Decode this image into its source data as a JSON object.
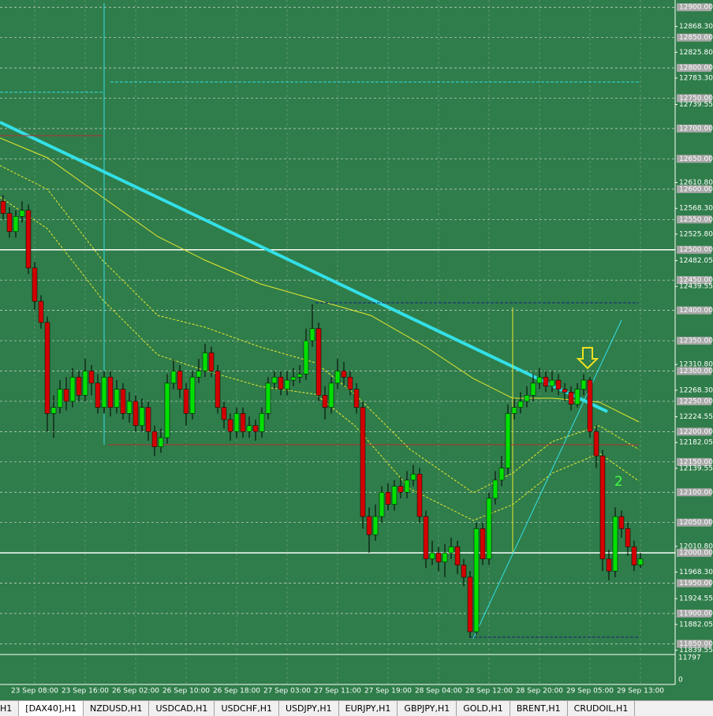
{
  "chart_data": {
    "type": "candlestick",
    "categories": [
      null,
      null,
      null,
      null,
      null,
      "23 Sep 08:00",
      null,
      null,
      null,
      null,
      null,
      null,
      null,
      "23 Sep 16:00",
      null,
      null,
      null,
      null,
      null,
      null,
      null,
      "26 Sep 02:00",
      null,
      null,
      null,
      null,
      null,
      null,
      null,
      "26 Sep 10:00",
      null,
      null,
      null,
      null,
      null,
      null,
      null,
      "26 Sep 18:00",
      null,
      null,
      null,
      null,
      null,
      null,
      null,
      "27 Sep 03:00",
      null,
      null,
      null,
      null,
      null,
      null,
      null,
      "27 Sep 11:00",
      null,
      null,
      null,
      null,
      null,
      null,
      null,
      "27 Sep 19:00",
      null,
      null,
      null,
      null,
      null,
      null,
      null,
      "28 Sep 04:00",
      null,
      null,
      null,
      null,
      null,
      null,
      null,
      "28 Sep 12:00",
      null,
      null,
      null,
      null,
      null,
      null,
      null,
      "28 Sep 20:00",
      null,
      null,
      null,
      null,
      null,
      null,
      null,
      "29 Sep 05:00",
      null,
      null,
      null,
      null,
      null,
      null,
      null,
      "29 Sep 13:00"
    ],
    "open": [
      12580,
      12560,
      12530,
      12555,
      12565,
      12470,
      12415,
      12380,
      12230,
      12240,
      12270,
      12250,
      12290,
      12260,
      12300,
      12280,
      12240,
      12290,
      12240,
      12270,
      12230,
      12250,
      12210,
      12240,
      12200,
      12175,
      12190,
      12280,
      12300,
      12270,
      12230,
      12290,
      12300,
      12330,
      12300,
      12240,
      12220,
      12200,
      12230,
      12200,
      12210,
      12200,
      12230,
      12280,
      12290,
      12270,
      12285,
      12290,
      12295,
      12350,
      12370,
      12260,
      12240,
      12280,
      12300,
      12290,
      12270,
      12240,
      12060,
      12030,
      12060,
      12100,
      12080,
      12110,
      12100,
      12120,
      12130,
      12060,
      11990,
      12000,
      11985,
      12000,
      12010,
      11980,
      11960,
      11870,
      12040,
      11990,
      12090,
      12120,
      12140,
      12230,
      12240,
      12250,
      12260,
      12280,
      12290,
      12275,
      12285,
      12270,
      12265,
      12245,
      12270,
      12285,
      12200,
      12160,
      11990,
      11970,
      12060,
      12040,
      12010,
      11980
    ],
    "high": [
      12590,
      12570,
      12565,
      12580,
      12575,
      12480,
      12425,
      12390,
      12260,
      12285,
      12290,
      12305,
      12300,
      12320,
      12310,
      12295,
      12300,
      12300,
      12285,
      12280,
      12265,
      12260,
      12255,
      12250,
      12210,
      12205,
      12295,
      12320,
      12310,
      12280,
      12300,
      12320,
      12345,
      12340,
      12310,
      12250,
      12230,
      12240,
      12240,
      12225,
      12220,
      12240,
      12290,
      12300,
      12300,
      12300,
      12305,
      12310,
      12370,
      12410,
      12380,
      12275,
      12290,
      12320,
      12315,
      12300,
      12280,
      12250,
      12075,
      12080,
      12110,
      12115,
      12120,
      12125,
      12135,
      12145,
      12140,
      12070,
      12020,
      12010,
      12015,
      12025,
      12020,
      11990,
      11970,
      12050,
      12050,
      12100,
      12135,
      12160,
      12245,
      12255,
      12265,
      12275,
      12295,
      12305,
      12300,
      12300,
      12295,
      12280,
      12275,
      12280,
      12295,
      12290,
      12210,
      12170,
      12005,
      12075,
      12070,
      12050,
      12020,
      12000
    ],
    "low": [
      12550,
      12520,
      12520,
      12545,
      12460,
      12400,
      12370,
      12200,
      12190,
      12230,
      12235,
      12240,
      12250,
      12250,
      12260,
      12230,
      12230,
      12225,
      12230,
      12220,
      12215,
      12200,
      12200,
      12185,
      12160,
      12165,
      12180,
      12270,
      12255,
      12210,
      12220,
      12280,
      12290,
      12290,
      12230,
      12205,
      12185,
      12190,
      12190,
      12190,
      12185,
      12190,
      12220,
      12270,
      12260,
      12260,
      12275,
      12280,
      12285,
      12340,
      12250,
      12220,
      12230,
      12270,
      12275,
      12260,
      12230,
      12040,
      12000,
      12020,
      12050,
      12070,
      12070,
      12090,
      12090,
      12110,
      12050,
      11975,
      11980,
      11970,
      11960,
      11990,
      11965,
      11945,
      11860,
      11865,
      11980,
      11980,
      12080,
      12110,
      12130,
      12220,
      12230,
      12240,
      12250,
      12270,
      12265,
      12265,
      12260,
      12250,
      12235,
      12240,
      12260,
      12190,
      12140,
      11970,
      11955,
      11960,
      12025,
      11995,
      11970,
      11975
    ],
    "close": [
      12560,
      12530,
      12555,
      12565,
      12470,
      12415,
      12380,
      12230,
      12240,
      12270,
      12250,
      12290,
      12260,
      12300,
      12280,
      12240,
      12290,
      12240,
      12270,
      12230,
      12250,
      12210,
      12240,
      12200,
      12175,
      12190,
      12280,
      12300,
      12270,
      12230,
      12290,
      12300,
      12330,
      12300,
      12240,
      12220,
      12200,
      12230,
      12200,
      12210,
      12200,
      12230,
      12280,
      12290,
      12270,
      12285,
      12290,
      12295,
      12350,
      12370,
      12260,
      12240,
      12280,
      12300,
      12290,
      12270,
      12240,
      12060,
      12030,
      12060,
      12100,
      12080,
      12110,
      12100,
      12120,
      12130,
      12060,
      11990,
      12000,
      11985,
      12000,
      12010,
      11980,
      11960,
      11870,
      12040,
      11990,
      12090,
      12120,
      12140,
      12230,
      12240,
      12250,
      12260,
      12280,
      12290,
      12275,
      12285,
      12270,
      12265,
      12245,
      12270,
      12285,
      12200,
      12160,
      11990,
      11970,
      12060,
      12040,
      12010,
      11980,
      11990
    ],
    "up_color": "#00e000",
    "down_color": "#d40000",
    "ylim": [
      11835,
      12912
    ],
    "yticks": [
      {
        "value": 12900,
        "label": "12900.00"
      },
      {
        "value": 12850,
        "label": "12850.00"
      },
      {
        "value": 12800,
        "label": "12800.00"
      },
      {
        "value": 12750,
        "label": "12750.00"
      },
      {
        "value": 12700,
        "label": "12700.00"
      },
      {
        "value": 12650,
        "label": "12650.00"
      },
      {
        "value": 12600,
        "label": "12600.00"
      },
      {
        "value": 12550,
        "label": "12550.00"
      },
      {
        "value": 12500,
        "label": "12500.00"
      },
      {
        "value": 12450,
        "label": "12450.00"
      },
      {
        "value": 12400,
        "label": "12400.00"
      },
      {
        "value": 12350,
        "label": "12350.00"
      },
      {
        "value": 12300,
        "label": "12300.00"
      },
      {
        "value": 12250,
        "label": "12250.00"
      },
      {
        "value": 12200,
        "label": "12200.00"
      },
      {
        "value": 12150,
        "label": "12150.00"
      },
      {
        "value": 12100,
        "label": "12100.00"
      },
      {
        "value": 12050,
        "label": "12050.00"
      },
      {
        "value": 12000,
        "label": "12000.00"
      },
      {
        "value": 11950,
        "label": "11950.00"
      },
      {
        "value": 11900,
        "label": "11900.00"
      },
      {
        "value": 11850,
        "label": "11850.00"
      }
    ],
    "yticks_minor": [
      {
        "value": 12868.3,
        "label": "12868.30"
      },
      {
        "value": 12825.8,
        "label": "12825.80"
      },
      {
        "value": 12783.3,
        "label": "12783.30"
      },
      {
        "value": 12739.55,
        "label": "12739.55"
      },
      {
        "value": 12610.8,
        "label": "12610.80"
      },
      {
        "value": 12568.3,
        "label": "12568.30"
      },
      {
        "value": 12525.8,
        "label": "12525.80"
      },
      {
        "value": 12482.05,
        "label": "12482.05"
      },
      {
        "value": 12439.55,
        "label": "12439.55"
      },
      {
        "value": 12310.8,
        "label": "12310.80"
      },
      {
        "value": 12268.3,
        "label": "12268.30"
      },
      {
        "value": 12224.55,
        "label": "12224.55"
      },
      {
        "value": 12182.05,
        "label": "12182.05"
      },
      {
        "value": 12139.55,
        "label": "12139.55"
      },
      {
        "value": 12010.8,
        "label": "12010.80"
      },
      {
        "value": 11968.3,
        "label": "11968.30"
      },
      {
        "value": 11924.55,
        "label": "11924.55"
      },
      {
        "value": 11882.05,
        "label": "11882.05"
      },
      {
        "value": 11839.55,
        "label": "11839.55"
      }
    ],
    "hlines": [
      12500,
      12000
    ],
    "grid": true,
    "volume_ylim": [
      0,
      11797
    ],
    "volume_yticks": [
      11797,
      0
    ],
    "annotation": "2"
  },
  "tabs": [
    "H1",
    "[DAX40],H1",
    "NZDUSD,H1",
    "USDCAD,H1",
    "USDCHF,H1",
    "USDJPY,H1",
    "EURJPY,H1",
    "GBPJPY,H1",
    "GOLD,H1",
    "BRENT,H1",
    "CRUDOIL,H1"
  ]
}
